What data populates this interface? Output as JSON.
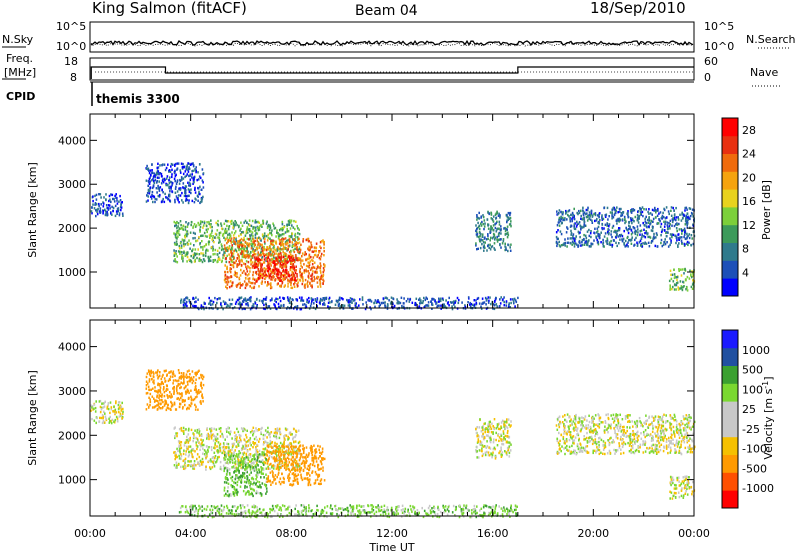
{
  "header": {
    "station": "King Salmon (fitACF)",
    "beam": "Beam 04",
    "date": "18/Sep/2010"
  },
  "noise_panel": {
    "left_label": "N.Sky",
    "right_label": "N.Search",
    "left_ticks": [
      "10^5",
      "10^0"
    ],
    "right_ticks": [
      "10^5",
      "10^0"
    ]
  },
  "freq_panel": {
    "left_label_1": "Freq.",
    "left_label_2": "[MHz]",
    "right_label": "Nave",
    "left_ticks": [
      "18",
      "8"
    ],
    "right_ticks": [
      "60",
      "0"
    ]
  },
  "cpid": {
    "label": "CPID",
    "value": "themis 3300"
  },
  "colors": {
    "power_scale": [
      "#0000ff",
      "#1c4fb8",
      "#2f7a8c",
      "#3c9a5a",
      "#7ccf3a",
      "#e8d21e",
      "#f5a30e",
      "#f06b0c",
      "#e83010",
      "#ff0000"
    ],
    "velocity_scale": [
      "#ff0000",
      "#ff5000",
      "#ff9a00",
      "#f5c000",
      "#c8c8c8",
      "#c8c8c8",
      "#7ad830",
      "#3aa030",
      "#2050a0",
      "#1a1aff"
    ],
    "ground_scatter": "#bbbbbb"
  },
  "chart_data": [
    {
      "type": "heatmap",
      "title": "",
      "xlabel": "Time UT",
      "ylabel": "Slant Range [km]",
      "x_ticks": [
        "00:00",
        "04:00",
        "08:00",
        "12:00",
        "16:00",
        "20:00",
        "00:00"
      ],
      "y_ticks": [
        "1000",
        "2000",
        "3000",
        "4000"
      ],
      "xlim_hours": [
        0,
        24
      ],
      "ylim_km": [
        180,
        4600
      ],
      "colorbar": {
        "label": "Power [dB]",
        "ticks": [
          "4",
          "8",
          "12",
          "16",
          "20",
          "24",
          "28"
        ],
        "range": [
          0,
          30
        ]
      },
      "scatter_regions": [
        {
          "t_start": 2.2,
          "t_end": 4.5,
          "r_start": 2600,
          "r_end": 3500,
          "mean_dB": 4
        },
        {
          "t_start": 0.0,
          "t_end": 1.3,
          "r_start": 2300,
          "r_end": 2800,
          "mean_dB": 4
        },
        {
          "t_start": 3.3,
          "t_end": 8.3,
          "r_start": 1250,
          "r_end": 2200,
          "mean_dB": 12
        },
        {
          "t_start": 5.3,
          "t_end": 9.3,
          "r_start": 650,
          "r_end": 1800,
          "mean_dB": 22
        },
        {
          "t_start": 6.5,
          "t_end": 8.2,
          "r_start": 800,
          "r_end": 1400,
          "mean_dB": 27
        },
        {
          "t_start": 15.3,
          "t_end": 16.7,
          "r_start": 1500,
          "r_end": 2400,
          "mean_dB": 8
        },
        {
          "t_start": 18.5,
          "t_end": 24.0,
          "r_start": 1600,
          "r_end": 2500,
          "mean_dB": 6
        },
        {
          "t_start": 23.0,
          "t_end": 24.0,
          "r_start": 600,
          "r_end": 1100,
          "mean_dB": 12
        },
        {
          "t_start": 3.5,
          "t_end": 17.0,
          "r_start": 180,
          "r_end": 450,
          "mean_dB": 5
        }
      ]
    },
    {
      "type": "heatmap",
      "title": "",
      "xlabel": "Time UT",
      "ylabel": "Slant Range [km]",
      "x_ticks": [
        "00:00",
        "04:00",
        "08:00",
        "12:00",
        "16:00",
        "20:00",
        "00:00"
      ],
      "y_ticks": [
        "1000",
        "2000",
        "3000",
        "4000"
      ],
      "xlim_hours": [
        0,
        24
      ],
      "ylim_km": [
        180,
        4600
      ],
      "colorbar": {
        "label": "Velocity [m s^-1]",
        "ticks": [
          "1000",
          "500",
          "100",
          "25",
          "-25",
          "-100",
          "-500",
          "-1000"
        ]
      },
      "scatter_regions": [
        {
          "t_start": 2.2,
          "t_end": 4.5,
          "r_start": 2600,
          "r_end": 3500,
          "mean_velocity": -200
        },
        {
          "t_start": 0.0,
          "t_end": 1.3,
          "r_start": 2300,
          "r_end": 2800,
          "mean_velocity": 0
        },
        {
          "t_start": 3.3,
          "t_end": 8.3,
          "r_start": 1250,
          "r_end": 2200,
          "mean_velocity": 0
        },
        {
          "t_start": 5.3,
          "t_end": 7.0,
          "r_start": 650,
          "r_end": 1600,
          "mean_velocity": 80
        },
        {
          "t_start": 7.0,
          "t_end": 9.3,
          "r_start": 900,
          "r_end": 1800,
          "mean_velocity": -250
        },
        {
          "t_start": 15.3,
          "t_end": 16.7,
          "r_start": 1500,
          "r_end": 2400,
          "mean_velocity": 0
        },
        {
          "t_start": 18.5,
          "t_end": 24.0,
          "r_start": 1600,
          "r_end": 2500,
          "mean_velocity": 0
        },
        {
          "t_start": 23.0,
          "t_end": 24.0,
          "r_start": 600,
          "r_end": 1100,
          "mean_velocity": 0
        },
        {
          "t_start": 3.5,
          "t_end": 17.0,
          "r_start": 180,
          "r_end": 450,
          "mean_velocity": 60
        }
      ]
    }
  ]
}
